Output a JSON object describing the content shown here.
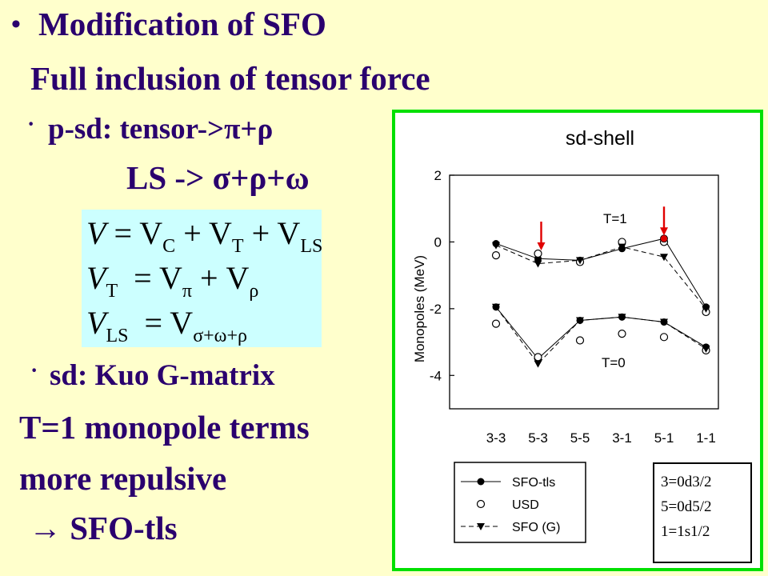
{
  "slide": {
    "bullet1": "•",
    "title": "Modification of SFO",
    "subtitle": "Full inclusion of tensor force",
    "bullet_small": "·",
    "psd_line": "p-sd: tensor->π+ρ",
    "ls_line": "LS -> σ+ρ+ω",
    "sd_line": "sd:  Kuo G-matrix",
    "t1_line": "T=1 monopole terms",
    "repulsive_line": "more repulsive",
    "arrow_line": "→ SFO-tls"
  },
  "equations": {
    "eq1": {
      "lhs": "V",
      "rhs": "= V",
      "sub1": "C",
      "plus1": " + V",
      "sub2": "T",
      "plus2": " + V",
      "sub3": "LS"
    },
    "eq2": {
      "lhs": "V",
      "lhs_sub": "T",
      "rhs": " = V",
      "sub1": "π",
      "plus1": " + V",
      "sub2": "ρ"
    },
    "eq3": {
      "lhs": "V",
      "lhs_sub": "LS",
      "rhs": " = V",
      "sub1": "σ+ω+ρ"
    }
  },
  "colors": {
    "text": "#2A006E",
    "background": "#FFFFCC",
    "equation_box": "#CCFFFF",
    "chart_border": "#00E000",
    "arrow": "#E00000"
  },
  "chart_data": {
    "type": "line",
    "title": "sd-shell",
    "ylabel": "Monopoles (MeV)",
    "xlabel": "",
    "categories": [
      "3-3",
      "5-3",
      "5-5",
      "3-1",
      "5-1",
      "1-1"
    ],
    "ylim": [
      -5,
      2
    ],
    "yticks": [
      2,
      0,
      -2,
      -4
    ],
    "ytick_labels": [
      "2",
      "0",
      "-2",
      "-4"
    ],
    "annotations": [
      "T=1",
      "T=0"
    ],
    "series": [
      {
        "name": "SFO-tls",
        "marker": "filled-circle",
        "line": "solid",
        "T1": [
          -0.05,
          -0.5,
          -0.55,
          -0.2,
          0.1,
          -1.95
        ],
        "T0": [
          -1.95,
          -3.5,
          -2.35,
          -2.25,
          -2.4,
          -3.15
        ]
      },
      {
        "name": "USD",
        "marker": "open-circle",
        "line": "none",
        "T1": [
          -0.4,
          -0.35,
          -0.6,
          0.0,
          0.0,
          -2.1
        ],
        "T0": [
          -2.45,
          -3.45,
          -2.95,
          -2.75,
          -2.85,
          -3.25
        ]
      },
      {
        "name": "SFO (G)",
        "marker": "filled-triangle-down",
        "line": "dashed",
        "T1": [
          -0.1,
          -0.65,
          -0.55,
          -0.15,
          -0.45,
          -2.0
        ],
        "T0": [
          -1.95,
          -3.65,
          -2.35,
          -2.25,
          -2.4,
          -3.2
        ]
      }
    ],
    "arrows_at": [
      "5-3",
      "5-1"
    ],
    "legend_position": "bottom-left",
    "key_box": [
      "3=0d3/2",
      "5=0d5/2",
      "1=1s1/2"
    ]
  }
}
